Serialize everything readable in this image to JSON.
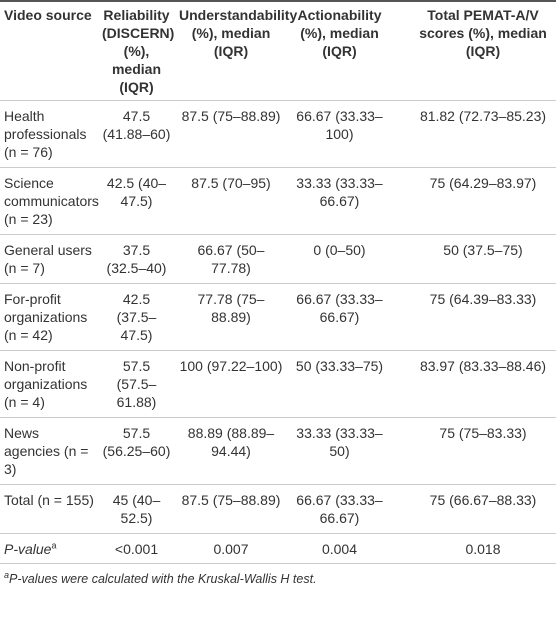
{
  "table": {
    "header": [
      "Video source",
      "Reliability (DISCERN) (%), median (IQR)",
      "Understandability (%), median (IQR)",
      "Actionability (%), median (IQR)",
      "Total PEMAT-A/V scores (%), median (IQR)"
    ],
    "rows": [
      [
        "Health professionals (n = 76)",
        "47.5 (41.88–60)",
        "87.5 (75–88.89)",
        "66.67 (33.33–100)",
        "81.82 (72.73–85.23)"
      ],
      [
        "Science communicators (n = 23)",
        "42.5 (40–47.5)",
        "87.5 (70–95)",
        "33.33 (33.33–66.67)",
        "75 (64.29–83.97)"
      ],
      [
        "General users (n = 7)",
        "37.5 (32.5–40)",
        "66.67 (50–77.78)",
        "0 (0–50)",
        "50 (37.5–75)"
      ],
      [
        "For-profit organizations (n = 42)",
        "42.5 (37.5–47.5)",
        "77.78 (75–88.89)",
        "66.67 (33.33–66.67)",
        "75 (64.39–83.33)"
      ],
      [
        "Non-profit organizations (n = 4)",
        "57.5 (57.5–61.88)",
        "100 (97.22–100)",
        "50 (33.33–75)",
        "83.97 (83.33–88.46)"
      ],
      [
        "News agencies (n = 3)",
        "57.5 (56.25–60)",
        "88.89 (88.89–94.44)",
        "33.33 (33.33–50)",
        "75 (75–83.33)"
      ],
      [
        "Total (n = 155)",
        "45 (40–52.5)",
        "87.5 (75–88.89)",
        "66.67 (33.33–66.67)",
        "75 (66.67–88.33)"
      ],
      [
        {
          "text": "P-value",
          "sup": "a"
        },
        "<0.001",
        "0.007",
        "0.004",
        "0.018"
      ]
    ],
    "footnote": {
      "marker": "a",
      "text": "P-values were calculated with the Kruskal-Wallis H test."
    }
  }
}
